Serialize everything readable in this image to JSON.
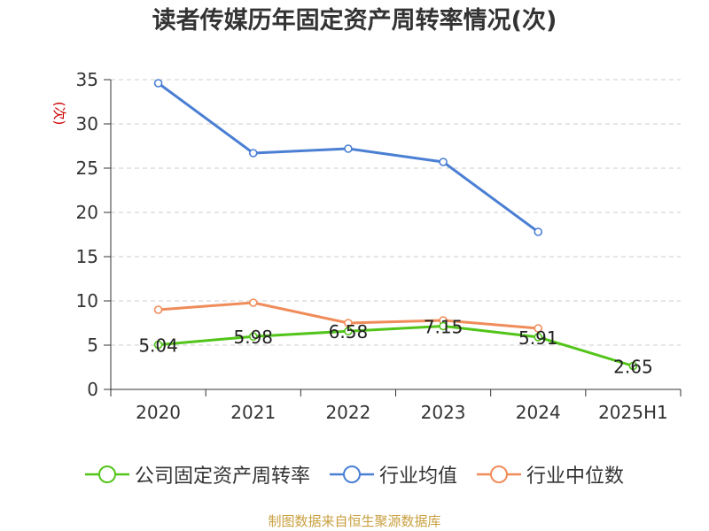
{
  "title": "读者传媒历年固定资产周转率情况(次)",
  "source": "制图数据来自恒生聚源数据库",
  "chart_data": {
    "type": "line",
    "title": "读者传媒历年固定资产周转率情况(次)",
    "ylabel": "(次)",
    "categories": [
      "2020",
      "2021",
      "2022",
      "2023",
      "2024",
      "2025H1"
    ],
    "ylim": [
      0,
      35
    ],
    "yticks": [
      0,
      5,
      10,
      15,
      20,
      25,
      30,
      35
    ],
    "grid": true,
    "legend_position": "bottom",
    "series": [
      {
        "name": "公司固定资产周转率",
        "color": "#52c41a",
        "values": [
          5.04,
          5.98,
          6.58,
          7.15,
          5.91,
          2.65
        ],
        "labels": [
          "5.04",
          "5.98",
          "6.58",
          "7.15",
          "5.91",
          "2.65"
        ]
      },
      {
        "name": "行业均值",
        "color": "#4a7fd4",
        "values": [
          34.6,
          26.7,
          27.2,
          25.7,
          17.8,
          null
        ]
      },
      {
        "name": "行业中位数",
        "color": "#f08c5a",
        "values": [
          9.0,
          9.8,
          7.5,
          7.8,
          6.9,
          null
        ]
      }
    ]
  }
}
